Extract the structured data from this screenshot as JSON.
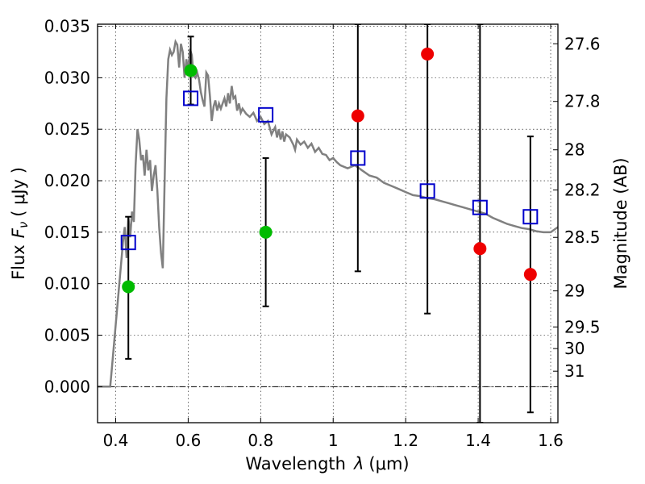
{
  "chart_data": {
    "type": "scatter",
    "xlabel_text": "Wavelength",
    "xlabel_symbol": "λ",
    "xlabel_unit": "(μm)",
    "ylabel_text": "Flux",
    "ylabel_symbol": "F",
    "ylabel_subscript": "ν",
    "ylabel_unit": "( μJy )",
    "y2label": "Magnitude (AB)",
    "xlim": [
      0.35,
      1.62
    ],
    "ylim": [
      -0.0035,
      0.0352
    ],
    "xticks": [
      0.4,
      0.6,
      0.8,
      1.0,
      1.2,
      1.4,
      1.6
    ],
    "xtick_labels": [
      "0.4",
      "0.6",
      "0.8",
      "1",
      "1.2",
      "1.4",
      "1.6"
    ],
    "yticks": [
      0.0,
      0.005,
      0.01,
      0.015,
      0.02,
      0.025,
      0.03,
      0.035
    ],
    "ytick_labels": [
      "0.000",
      "0.005",
      "0.010",
      "0.015",
      "0.020",
      "0.025",
      "0.030",
      "0.035"
    ],
    "y2ticks": [
      {
        "label": "27.6",
        "flux": 0.0333
      },
      {
        "label": "27.8",
        "flux": 0.0277
      },
      {
        "label": "28",
        "flux": 0.023
      },
      {
        "label": "28.2",
        "flux": 0.0191
      },
      {
        "label": "28.5",
        "flux": 0.0145
      },
      {
        "label": "29",
        "flux": 0.0093
      },
      {
        "label": "29.5",
        "flux": 0.0058
      },
      {
        "label": "30",
        "flux": 0.0037
      },
      {
        "label": "31",
        "flux": 0.0015
      }
    ],
    "grid": true,
    "zero_line": true,
    "colors": {
      "template": "#808080",
      "model": "#0000cc",
      "detected": "#00bb00",
      "upper": "#ee0000",
      "errorbar": "#000000"
    },
    "template_spectrum": [
      [
        0.35,
        0.0
      ],
      [
        0.385,
        0.0
      ],
      [
        0.39,
        0.002
      ],
      [
        0.4,
        0.006
      ],
      [
        0.41,
        0.01
      ],
      [
        0.42,
        0.014
      ],
      [
        0.425,
        0.0155
      ],
      [
        0.43,
        0.0125
      ],
      [
        0.435,
        0.0165
      ],
      [
        0.44,
        0.0145
      ],
      [
        0.445,
        0.017
      ],
      [
        0.45,
        0.016
      ],
      [
        0.455,
        0.0215
      ],
      [
        0.46,
        0.025
      ],
      [
        0.465,
        0.024
      ],
      [
        0.47,
        0.022
      ],
      [
        0.475,
        0.0225
      ],
      [
        0.48,
        0.0205
      ],
      [
        0.485,
        0.023
      ],
      [
        0.49,
        0.021
      ],
      [
        0.495,
        0.022
      ],
      [
        0.5,
        0.019
      ],
      [
        0.505,
        0.0205
      ],
      [
        0.51,
        0.0215
      ],
      [
        0.515,
        0.019
      ],
      [
        0.52,
        0.0155
      ],
      [
        0.525,
        0.013
      ],
      [
        0.53,
        0.0115
      ],
      [
        0.535,
        0.02
      ],
      [
        0.54,
        0.028
      ],
      [
        0.545,
        0.0318
      ],
      [
        0.55,
        0.0327
      ],
      [
        0.555,
        0.0322
      ],
      [
        0.56,
        0.0325
      ],
      [
        0.565,
        0.0335
      ],
      [
        0.57,
        0.0332
      ],
      [
        0.575,
        0.031
      ],
      [
        0.58,
        0.0333
      ],
      [
        0.585,
        0.0325
      ],
      [
        0.59,
        0.03
      ],
      [
        0.595,
        0.0318
      ],
      [
        0.6,
        0.0305
      ],
      [
        0.605,
        0.0328
      ],
      [
        0.61,
        0.0322
      ],
      [
        0.615,
        0.0302
      ],
      [
        0.62,
        0.03
      ],
      [
        0.625,
        0.0305
      ],
      [
        0.63,
        0.0298
      ],
      [
        0.635,
        0.0286
      ],
      [
        0.64,
        0.0278
      ],
      [
        0.645,
        0.0272
      ],
      [
        0.65,
        0.0305
      ],
      [
        0.655,
        0.0302
      ],
      [
        0.66,
        0.0282
      ],
      [
        0.665,
        0.0258
      ],
      [
        0.67,
        0.0272
      ],
      [
        0.675,
        0.0278
      ],
      [
        0.68,
        0.0268
      ],
      [
        0.685,
        0.0275
      ],
      [
        0.69,
        0.027
      ],
      [
        0.695,
        0.0275
      ],
      [
        0.7,
        0.028
      ],
      [
        0.705,
        0.0272
      ],
      [
        0.71,
        0.0285
      ],
      [
        0.715,
        0.0275
      ],
      [
        0.72,
        0.0292
      ],
      [
        0.725,
        0.028
      ],
      [
        0.73,
        0.0282
      ],
      [
        0.735,
        0.0268
      ],
      [
        0.74,
        0.0275
      ],
      [
        0.745,
        0.0266
      ],
      [
        0.75,
        0.027
      ],
      [
        0.76,
        0.0265
      ],
      [
        0.77,
        0.0262
      ],
      [
        0.78,
        0.0266
      ],
      [
        0.79,
        0.0258
      ],
      [
        0.8,
        0.0262
      ],
      [
        0.81,
        0.0255
      ],
      [
        0.82,
        0.0258
      ],
      [
        0.83,
        0.0245
      ],
      [
        0.84,
        0.0252
      ],
      [
        0.845,
        0.0242
      ],
      [
        0.85,
        0.025
      ],
      [
        0.855,
        0.024
      ],
      [
        0.86,
        0.0248
      ],
      [
        0.865,
        0.0238
      ],
      [
        0.87,
        0.0245
      ],
      [
        0.88,
        0.0242
      ],
      [
        0.89,
        0.0235
      ],
      [
        0.895,
        0.023
      ],
      [
        0.9,
        0.024
      ],
      [
        0.91,
        0.0235
      ],
      [
        0.92,
        0.0238
      ],
      [
        0.93,
        0.0232
      ],
      [
        0.94,
        0.0236
      ],
      [
        0.95,
        0.0228
      ],
      [
        0.96,
        0.0232
      ],
      [
        0.97,
        0.0226
      ],
      [
        0.98,
        0.0225
      ],
      [
        0.99,
        0.022
      ],
      [
        1.0,
        0.0222
      ],
      [
        1.01,
        0.0218
      ],
      [
        1.02,
        0.0215
      ],
      [
        1.04,
        0.0212
      ],
      [
        1.06,
        0.0215
      ],
      [
        1.08,
        0.021
      ],
      [
        1.1,
        0.0205
      ],
      [
        1.12,
        0.0203
      ],
      [
        1.14,
        0.0198
      ],
      [
        1.16,
        0.0195
      ],
      [
        1.18,
        0.0192
      ],
      [
        1.2,
        0.0189
      ],
      [
        1.22,
        0.0186
      ],
      [
        1.24,
        0.0185
      ],
      [
        1.26,
        0.0183
      ],
      [
        1.28,
        0.0182
      ],
      [
        1.3,
        0.018
      ],
      [
        1.32,
        0.0178
      ],
      [
        1.34,
        0.0176
      ],
      [
        1.36,
        0.0174
      ],
      [
        1.38,
        0.0172
      ],
      [
        1.4,
        0.017
      ],
      [
        1.42,
        0.0168
      ],
      [
        1.44,
        0.0164
      ],
      [
        1.46,
        0.0161
      ],
      [
        1.48,
        0.0158
      ],
      [
        1.5,
        0.0156
      ],
      [
        1.52,
        0.0154
      ],
      [
        1.54,
        0.0153
      ],
      [
        1.56,
        0.0151
      ],
      [
        1.58,
        0.015
      ],
      [
        1.6,
        0.015
      ],
      [
        1.62,
        0.0155
      ]
    ],
    "model_points": [
      {
        "x": 0.435,
        "y": 0.014
      },
      {
        "x": 0.607,
        "y": 0.028
      },
      {
        "x": 0.814,
        "y": 0.0264
      },
      {
        "x": 1.068,
        "y": 0.0222
      },
      {
        "x": 1.26,
        "y": 0.019
      },
      {
        "x": 1.405,
        "y": 0.0174
      },
      {
        "x": 1.544,
        "y": 0.0165
      }
    ],
    "detected_points": [
      {
        "x": 0.435,
        "y": 0.0097,
        "err_low": 0.0027,
        "err_high": 0.0165
      },
      {
        "x": 0.607,
        "y": 0.0307,
        "err_low": 0.0274,
        "err_high": 0.034
      },
      {
        "x": 0.814,
        "y": 0.015,
        "err_low": 0.0078,
        "err_high": 0.0222
      }
    ],
    "upper_points": [
      {
        "x": 1.068,
        "y": 0.0263,
        "err_low": 0.0112,
        "err_high": 0.0352
      },
      {
        "x": 1.26,
        "y": 0.0323,
        "err_low": 0.0071,
        "err_high": 0.0352
      },
      {
        "x": 1.405,
        "y": 0.0134,
        "err_low": -0.0035,
        "err_high": 0.0352
      },
      {
        "x": 1.544,
        "y": 0.0109,
        "err_low": -0.0025,
        "err_high": 0.0243
      }
    ]
  }
}
